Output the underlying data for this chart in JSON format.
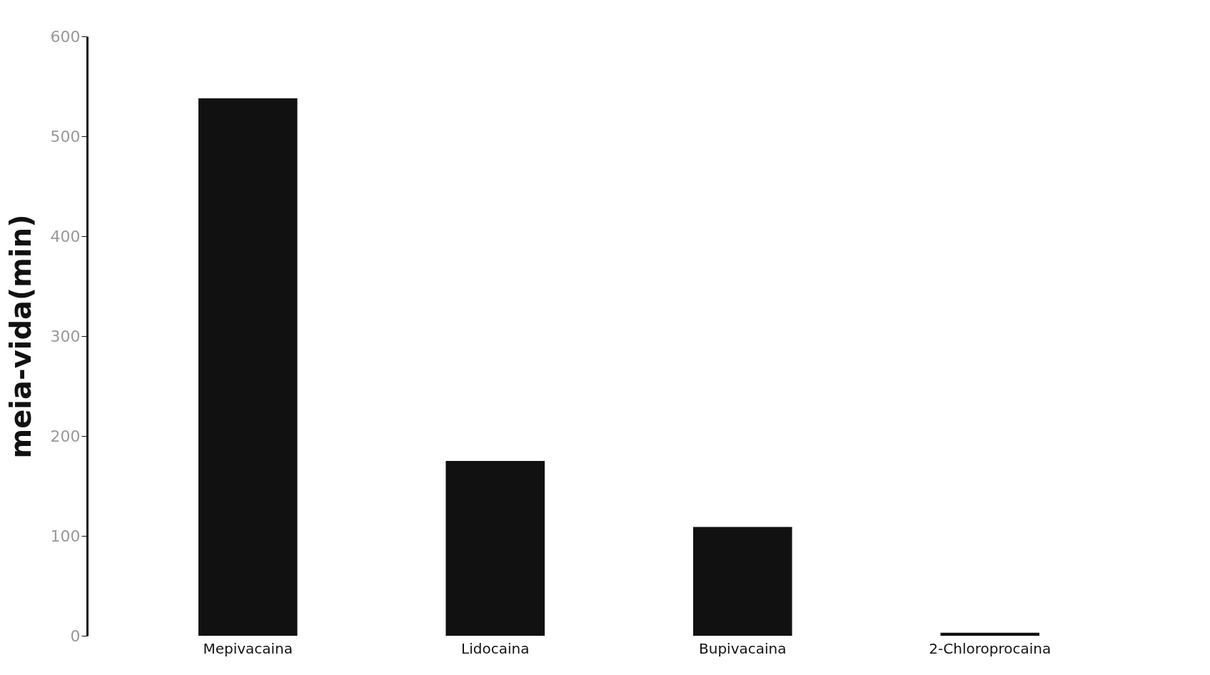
{
  "chart_data": {
    "type": "bar",
    "ylabel": "meia-vida(min)",
    "categories": [
      "Mepivacaina",
      "Lidocaina",
      "Bupivacaina",
      "2-Chloroprocaina"
    ],
    "values": [
      538,
      175,
      109,
      3
    ],
    "color": "#111111",
    "ylim": [
      0,
      600
    ],
    "yticks": [
      0,
      100,
      200,
      300,
      400,
      500,
      600
    ],
    "grid": false
  }
}
